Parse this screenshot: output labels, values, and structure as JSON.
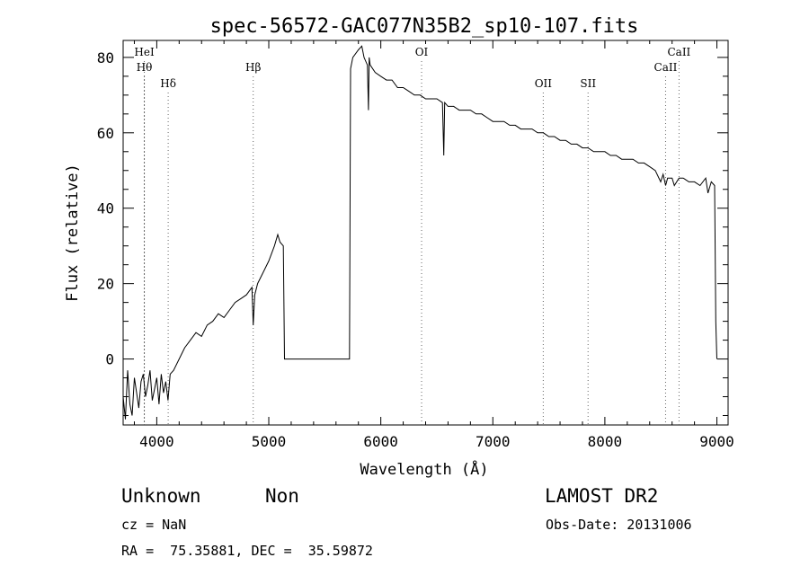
{
  "chart_data": {
    "type": "line",
    "title": "spec-56572-GAC077N35B2_sp10-107.fits",
    "xlabel": "Wavelength (Å)",
    "ylabel": "Flux (relative)",
    "xlim": [
      3700,
      9100
    ],
    "ylim": [
      -17.5,
      84.5
    ],
    "x_ticks": [
      4000,
      5000,
      6000,
      7000,
      8000,
      9000
    ],
    "y_ticks": [
      0,
      20,
      40,
      60,
      80
    ],
    "grid": false,
    "series": [
      {
        "x": [
          3700,
          3720,
          3740,
          3760,
          3780,
          3800,
          3820,
          3840,
          3860,
          3880,
          3900,
          3920,
          3940,
          3960,
          3980,
          4000,
          4020,
          4040,
          4060,
          4080,
          4100,
          4120,
          4150,
          4200,
          4250,
          4300,
          4350,
          4400,
          4450,
          4500,
          4550,
          4600,
          4650,
          4700,
          4750,
          4800,
          4850,
          4861,
          4875,
          4900,
          4950,
          5000,
          5050,
          5080,
          5100,
          5130,
          5140,
          5720,
          5730,
          5750,
          5800,
          5830,
          5850,
          5880,
          5890,
          5896,
          5905,
          5950,
          6000,
          6050,
          6100,
          6150,
          6200,
          6250,
          6300,
          6350,
          6400,
          6450,
          6500,
          6550,
          6562,
          6570,
          6600,
          6650,
          6700,
          6750,
          6800,
          6850,
          6900,
          6950,
          7000,
          7050,
          7100,
          7150,
          7200,
          7250,
          7300,
          7350,
          7400,
          7450,
          7500,
          7550,
          7600,
          7650,
          7700,
          7750,
          7800,
          7850,
          7900,
          7950,
          8000,
          8050,
          8100,
          8150,
          8200,
          8250,
          8300,
          8350,
          8400,
          8450,
          8498,
          8520,
          8542,
          8560,
          8600,
          8620,
          8662,
          8700,
          8750,
          8800,
          8850,
          8900,
          8920,
          8950,
          8980,
          8990,
          9000
        ],
        "y": [
          -10,
          -16,
          -3,
          -12,
          -15,
          -5,
          -9,
          -13,
          -6,
          -4,
          -10,
          -7,
          -3,
          -11,
          -8,
          -5,
          -12,
          -4,
          -9,
          -6,
          -11,
          -4,
          -3,
          0,
          3,
          5,
          7,
          6,
          9,
          10,
          12,
          11,
          13,
          15,
          16,
          17,
          19,
          9,
          17,
          20,
          23,
          26,
          30,
          33,
          31,
          30,
          0,
          0,
          77,
          80,
          82,
          83,
          80,
          78,
          66,
          80,
          78,
          76,
          75,
          74,
          74,
          72,
          72,
          71,
          70,
          70,
          69,
          69,
          69,
          68,
          54,
          68,
          67,
          67,
          66,
          66,
          66,
          65,
          65,
          64,
          63,
          63,
          63,
          62,
          62,
          61,
          61,
          61,
          60,
          60,
          59,
          59,
          58,
          58,
          57,
          57,
          56,
          56,
          55,
          55,
          55,
          54,
          54,
          53,
          53,
          53,
          52,
          52,
          51,
          50,
          47,
          49,
          46,
          48,
          48,
          46,
          48,
          48,
          47,
          47,
          46,
          48,
          44,
          47,
          46,
          10,
          0
        ]
      }
    ],
    "lines": [
      {
        "label": "Hθ",
        "x": 3889,
        "row": 2
      },
      {
        "label": "HeI",
        "x": 3889,
        "row": 1
      },
      {
        "label": "Hδ",
        "x": 4102,
        "row": 3
      },
      {
        "label": "Hβ",
        "x": 4861,
        "row": 2
      },
      {
        "label": "OI",
        "x": 6364,
        "row": 1
      },
      {
        "label": "OII",
        "x": 7450,
        "row": 3
      },
      {
        "label": "SII",
        "x": 7850,
        "row": 3
      },
      {
        "label": "CaII",
        "x": 8542,
        "row": 2
      },
      {
        "label": "CaII",
        "x": 8662,
        "row": 1
      }
    ]
  },
  "info": {
    "class": "Unknown",
    "subclass": "Non",
    "survey": "LAMOST DR2",
    "cz": "cz = NaN",
    "obs_date": "Obs-Date: 20131006",
    "coords": "RA =  75.35881, DEC =  35.59872"
  }
}
